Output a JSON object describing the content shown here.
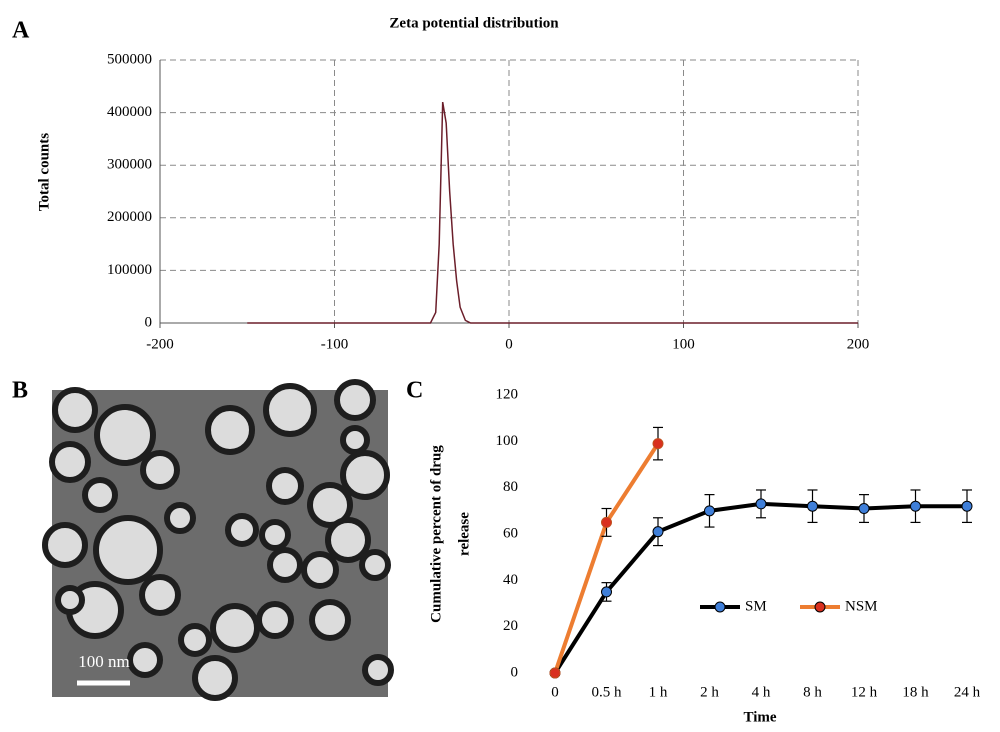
{
  "panel_labels": [
    "A",
    "B",
    "C"
  ],
  "image": {
    "scale_bar_label": "100 nm"
  },
  "chart_data": [
    {
      "type": "line",
      "title": "Zeta potential distribution",
      "ylabel": "Total counts",
      "x": [
        -150,
        -60,
        -45,
        -42,
        -40,
        -38,
        -36,
        -34,
        -32,
        -30,
        -28,
        -25,
        -22,
        200
      ],
      "values": [
        0,
        0,
        0,
        20000,
        150000,
        420000,
        380000,
        250000,
        150000,
        80000,
        30000,
        5000,
        0,
        0
      ],
      "color": "#6b1e2a",
      "xlim": [
        -200,
        200
      ],
      "xticks": [
        -200,
        -100,
        0,
        100,
        200
      ],
      "ylim": [
        0,
        500000
      ],
      "yticks": [
        0,
        100000,
        200000,
        300000,
        400000,
        500000
      ],
      "grid": true
    },
    {
      "type": "line",
      "xlabel": "Time",
      "ylabel": [
        "Cumulative percent of drug",
        "release"
      ],
      "categories": [
        "0",
        "0.5 h",
        "1 h",
        "2 h",
        "4 h",
        "8 h",
        "12 h",
        "18 h",
        "24 h"
      ],
      "series": [
        {
          "name": "SM",
          "color": "#000000",
          "marker_color": "#3f7fd9",
          "values": [
            0,
            35,
            61,
            70,
            73,
            72,
            71,
            72,
            72
          ],
          "errors": [
            1,
            4,
            6,
            7,
            6,
            7,
            6,
            7,
            7
          ]
        },
        {
          "name": "NSM",
          "color": "#ed7d31",
          "marker_color": "#d9301f",
          "values": [
            0,
            65,
            99,
            null,
            null,
            null,
            null,
            null,
            null
          ],
          "errors": [
            1,
            6,
            7,
            null,
            null,
            null,
            null,
            null,
            null
          ]
        }
      ],
      "ylim": [
        0,
        120
      ],
      "yticks": [
        0,
        20,
        40,
        60,
        80,
        100,
        120
      ],
      "legend": "center"
    }
  ]
}
